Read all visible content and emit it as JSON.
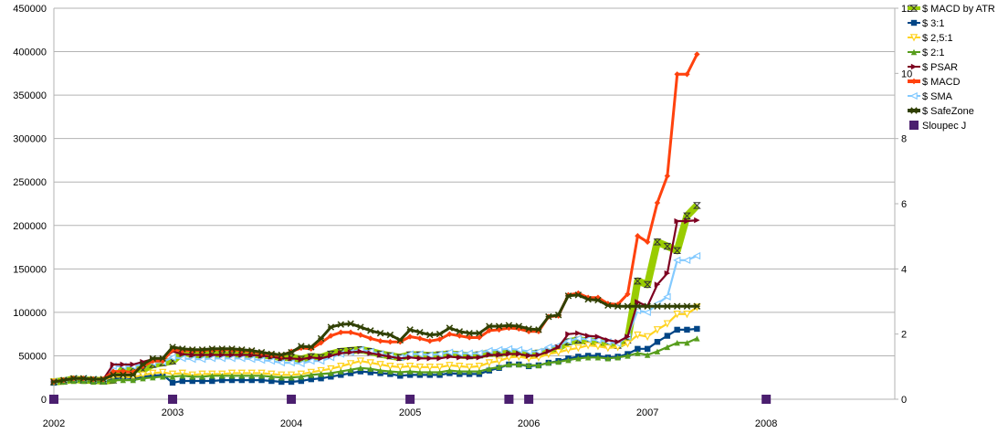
{
  "chart_data": {
    "type": "line",
    "x": [
      2002.0,
      2002.083,
      2002.167,
      2002.25,
      2002.333,
      2002.417,
      2002.5,
      2002.583,
      2002.667,
      2002.75,
      2002.833,
      2002.917,
      2003.0,
      2003.083,
      2003.167,
      2003.25,
      2003.333,
      2003.417,
      2003.5,
      2003.583,
      2003.667,
      2003.75,
      2003.833,
      2003.917,
      2004.0,
      2004.083,
      2004.167,
      2004.25,
      2004.333,
      2004.417,
      2004.5,
      2004.583,
      2004.667,
      2004.75,
      2004.833,
      2004.917,
      2005.0,
      2005.083,
      2005.167,
      2005.25,
      2005.333,
      2005.417,
      2005.5,
      2005.583,
      2005.667,
      2005.75,
      2005.833,
      2005.917,
      2006.0,
      2006.083,
      2006.167,
      2006.25,
      2006.333,
      2006.417,
      2006.5,
      2006.583,
      2006.667,
      2006.75,
      2006.833,
      2006.917,
      2007.0,
      2007.083,
      2007.167,
      2007.25,
      2007.333,
      2007.417,
      2007.5,
      2007.583,
      2007.667,
      2007.75,
      2007.833,
      2007.917,
      2008.0,
      2008.083,
      2008.167,
      2008.25,
      2008.333,
      2008.417,
      2008.5,
      2008.583,
      2008.667,
      2008.75,
      2008.833,
      2008.917,
      2009.0,
      2009.083
    ],
    "xticks": [
      {
        "label": "2002",
        "x": 2002.0
      },
      {
        "label": "2003",
        "x": 2003.0
      },
      {
        "label": "2004",
        "x": 2004.0
      },
      {
        "label": "2005",
        "x": 2005.0
      },
      {
        "label": "2006",
        "x": 2006.0
      },
      {
        "label": "2007",
        "x": 2007.0
      },
      {
        "label": "2008",
        "x": 2008.0
      }
    ],
    "ylim": [
      0,
      450000
    ],
    "yticks": [
      0,
      50000,
      100000,
      150000,
      200000,
      250000,
      300000,
      350000,
      400000,
      450000
    ],
    "y2lim": [
      0,
      12
    ],
    "y2ticks": [
      0,
      2,
      4,
      6,
      8,
      10,
      12
    ],
    "grid": true,
    "legend_position": "right",
    "series": [
      {
        "name": "$ MACD by ATR",
        "color": "#99cc00",
        "marker": "hourglass",
        "thick": true,
        "axis": "left",
        "values": [
          20000,
          21000,
          23000,
          22000,
          22000,
          21000,
          22000,
          35000,
          36000,
          34000,
          40000,
          42000,
          44000,
          54000,
          52000,
          51000,
          52000,
          51000,
          51000,
          52000,
          52000,
          51000,
          50000,
          48000,
          48000,
          46000,
          49000,
          48000,
          52000,
          55000,
          56000,
          57000,
          55000,
          52000,
          50000,
          48000,
          51000,
          51000,
          50000,
          51000,
          52000,
          51000,
          50000,
          51000,
          53000,
          53000,
          54000,
          53000,
          52000,
          53000,
          56000,
          59000,
          66000,
          68000,
          67000,
          66000,
          64000,
          62000,
          68000,
          136000,
          132000,
          181000,
          176000,
          171000,
          211000,
          223000,
          null,
          null,
          null,
          null,
          null,
          null,
          null,
          null,
          null,
          null,
          null,
          null,
          null,
          null,
          null,
          null,
          null,
          null,
          null,
          null
        ]
      },
      {
        "name": "$ 3:1",
        "color": "#004586",
        "marker": "square",
        "thick": false,
        "axis": "left",
        "values": [
          19000,
          21000,
          22000,
          22000,
          21000,
          21000,
          24000,
          25000,
          24000,
          26000,
          27000,
          28000,
          19000,
          21000,
          21000,
          21000,
          21000,
          22000,
          22000,
          22000,
          22000,
          22000,
          21000,
          20000,
          20000,
          21000,
          23000,
          24000,
          26000,
          28000,
          30000,
          32000,
          31000,
          30000,
          29000,
          27000,
          28000,
          28000,
          28000,
          28000,
          30000,
          29000,
          29000,
          29000,
          33000,
          36000,
          40000,
          40000,
          38000,
          39000,
          42000,
          44000,
          47000,
          49000,
          50000,
          50000,
          48000,
          49000,
          52000,
          58000,
          58000,
          66000,
          73000,
          80000,
          80000,
          81000,
          null,
          null,
          null,
          null,
          null,
          null,
          null,
          null,
          null,
          null,
          null,
          null,
          null,
          null,
          null,
          null,
          null,
          null,
          null,
          null
        ]
      },
      {
        "name": "$ 2,5:1",
        "color": "#ffd320",
        "marker": "triangle-down",
        "thick": false,
        "axis": "left",
        "values": [
          20000,
          21000,
          23000,
          23000,
          22000,
          22000,
          26000,
          26000,
          25000,
          28000,
          30000,
          31000,
          29000,
          30000,
          28000,
          29000,
          29000,
          29000,
          30000,
          30000,
          30000,
          30000,
          29000,
          28000,
          28000,
          29000,
          31000,
          33000,
          35000,
          38000,
          41000,
          44000,
          42000,
          40000,
          38000,
          37000,
          38000,
          37000,
          37000,
          37000,
          39000,
          38000,
          37000,
          38000,
          42000,
          44000,
          48000,
          49000,
          47000,
          48000,
          52000,
          54000,
          57000,
          59000,
          62000,
          61000,
          59000,
          60000,
          64000,
          74000,
          72000,
          80000,
          87000,
          98000,
          98000,
          106000,
          null,
          null,
          null,
          null,
          null,
          null,
          null,
          null,
          null,
          null,
          null,
          null,
          null,
          null,
          null,
          null,
          null,
          null,
          null,
          null
        ]
      },
      {
        "name": "$ 2:1",
        "color": "#579d1c",
        "marker": "triangle-up",
        "thick": false,
        "axis": "left",
        "values": [
          20000,
          20000,
          21000,
          21000,
          20000,
          20000,
          22000,
          22000,
          22000,
          24000,
          25000,
          26000,
          26000,
          27000,
          26000,
          26000,
          27000,
          27000,
          27000,
          27000,
          27000,
          27000,
          26000,
          25000,
          25000,
          26000,
          28000,
          29000,
          30000,
          32000,
          34000,
          36000,
          35000,
          33000,
          32000,
          31000,
          32000,
          31000,
          31000,
          31000,
          33000,
          32000,
          32000,
          32000,
          35000,
          37000,
          40000,
          40000,
          39000,
          39000,
          42000,
          43000,
          45000,
          47000,
          48000,
          48000,
          47000,
          48000,
          50000,
          53000,
          51000,
          55000,
          60000,
          65000,
          65000,
          70000,
          null,
          null,
          null,
          null,
          null,
          null,
          null,
          null,
          null,
          null,
          null,
          null,
          null,
          null,
          null,
          null,
          null,
          null,
          null,
          null
        ]
      },
      {
        "name": "$ PSAR",
        "color": "#7e0021",
        "marker": "arrow-right",
        "thick": false,
        "axis": "left",
        "values": [
          20000,
          22000,
          24000,
          24000,
          23000,
          23000,
          40000,
          40000,
          40000,
          43000,
          46000,
          46000,
          55000,
          52000,
          51000,
          51000,
          51000,
          51000,
          51000,
          51000,
          51000,
          50000,
          49000,
          47000,
          47000,
          46000,
          48000,
          47000,
          50000,
          53000,
          54000,
          55000,
          53000,
          51000,
          49000,
          47000,
          48000,
          47000,
          47000,
          47000,
          49000,
          48000,
          48000,
          48000,
          51000,
          51000,
          52000,
          52000,
          50000,
          51000,
          55000,
          60000,
          75000,
          76000,
          73000,
          72000,
          68000,
          66000,
          72000,
          112000,
          107000,
          132000,
          145000,
          205000,
          205000,
          206000,
          null,
          null,
          null,
          null,
          null,
          null,
          null,
          null,
          null,
          null,
          null,
          null,
          null,
          null,
          null,
          null,
          null,
          null,
          null,
          null
        ]
      },
      {
        "name": "$ MACD",
        "color": "#ff420e",
        "marker": "diamond",
        "thick": true,
        "axis": "left",
        "values": [
          20000,
          22000,
          24000,
          24000,
          23000,
          23000,
          32000,
          32000,
          31000,
          38000,
          44000,
          44000,
          57000,
          56000,
          56000,
          56000,
          57000,
          57000,
          57000,
          56000,
          55000,
          53000,
          51000,
          50000,
          55000,
          59000,
          58000,
          65000,
          73000,
          77000,
          77000,
          74000,
          70000,
          67000,
          66000,
          66000,
          72000,
          70000,
          67000,
          69000,
          75000,
          73000,
          71000,
          71000,
          79000,
          80000,
          82000,
          81000,
          78000,
          78000,
          95000,
          96000,
          120000,
          122000,
          117000,
          117000,
          110000,
          109000,
          121000,
          188000,
          181000,
          226000,
          257000,
          374000,
          374000,
          397000,
          null,
          null,
          null,
          null,
          null,
          null,
          null,
          null,
          null,
          null,
          null,
          null,
          null,
          null,
          null,
          null,
          null,
          null,
          null,
          null
        ]
      },
      {
        "name": "$ SMA",
        "color": "#83caff",
        "marker": "triangle-left",
        "thick": false,
        "axis": "left",
        "values": [
          20000,
          22000,
          24000,
          24000,
          23000,
          23000,
          38000,
          38000,
          38000,
          40000,
          42000,
          43000,
          48000,
          47000,
          46000,
          46000,
          47000,
          47000,
          47000,
          47000,
          46000,
          45000,
          44000,
          42000,
          42000,
          41000,
          44000,
          44000,
          48000,
          52000,
          54000,
          57000,
          55000,
          52000,
          50000,
          48000,
          52000,
          52000,
          51000,
          52000,
          54000,
          53000,
          53000,
          53000,
          56000,
          57000,
          58000,
          57000,
          55000,
          55000,
          60000,
          62000,
          67000,
          70000,
          69000,
          68000,
          66000,
          64000,
          72000,
          102000,
          100000,
          110000,
          118000,
          160000,
          160000,
          165000,
          null,
          null,
          null,
          null,
          null,
          null,
          null,
          null,
          null,
          null,
          null,
          null,
          null,
          null,
          null,
          null,
          null,
          null,
          null,
          null
        ]
      },
      {
        "name": "$ SafeZone",
        "color": "#314004",
        "marker": "star",
        "thick": true,
        "axis": "left",
        "values": [
          20000,
          22000,
          24000,
          24000,
          23000,
          23000,
          28000,
          28000,
          28000,
          40000,
          47000,
          47000,
          60000,
          58000,
          57000,
          57000,
          58000,
          58000,
          58000,
          57000,
          56000,
          54000,
          52000,
          51000,
          54000,
          61000,
          60000,
          70000,
          83000,
          86000,
          87000,
          83000,
          79000,
          76000,
          74000,
          68000,
          80000,
          77000,
          74000,
          75000,
          82000,
          78000,
          76000,
          76000,
          84000,
          84000,
          85000,
          84000,
          81000,
          80000,
          95000,
          97000,
          119000,
          120000,
          115000,
          114000,
          108000,
          107000,
          107000,
          107000,
          107000,
          107000,
          107000,
          107000,
          107000,
          107000,
          null,
          null,
          null,
          null,
          null,
          null,
          null,
          null,
          null,
          null,
          null,
          null,
          null,
          null,
          null,
          null,
          null,
          null,
          null,
          null
        ]
      },
      {
        "name": "Sloupec J",
        "color": "#4b1f6f",
        "marker": "square",
        "thick": false,
        "axis": "right",
        "type": "scatter",
        "points": [
          [
            2002.0,
            0
          ],
          [
            2003.0,
            0
          ],
          [
            2004.0,
            0
          ],
          [
            2005.0,
            0
          ],
          [
            2005.833,
            0
          ],
          [
            2006.0,
            0
          ],
          [
            2008.0,
            0
          ]
        ]
      }
    ]
  }
}
